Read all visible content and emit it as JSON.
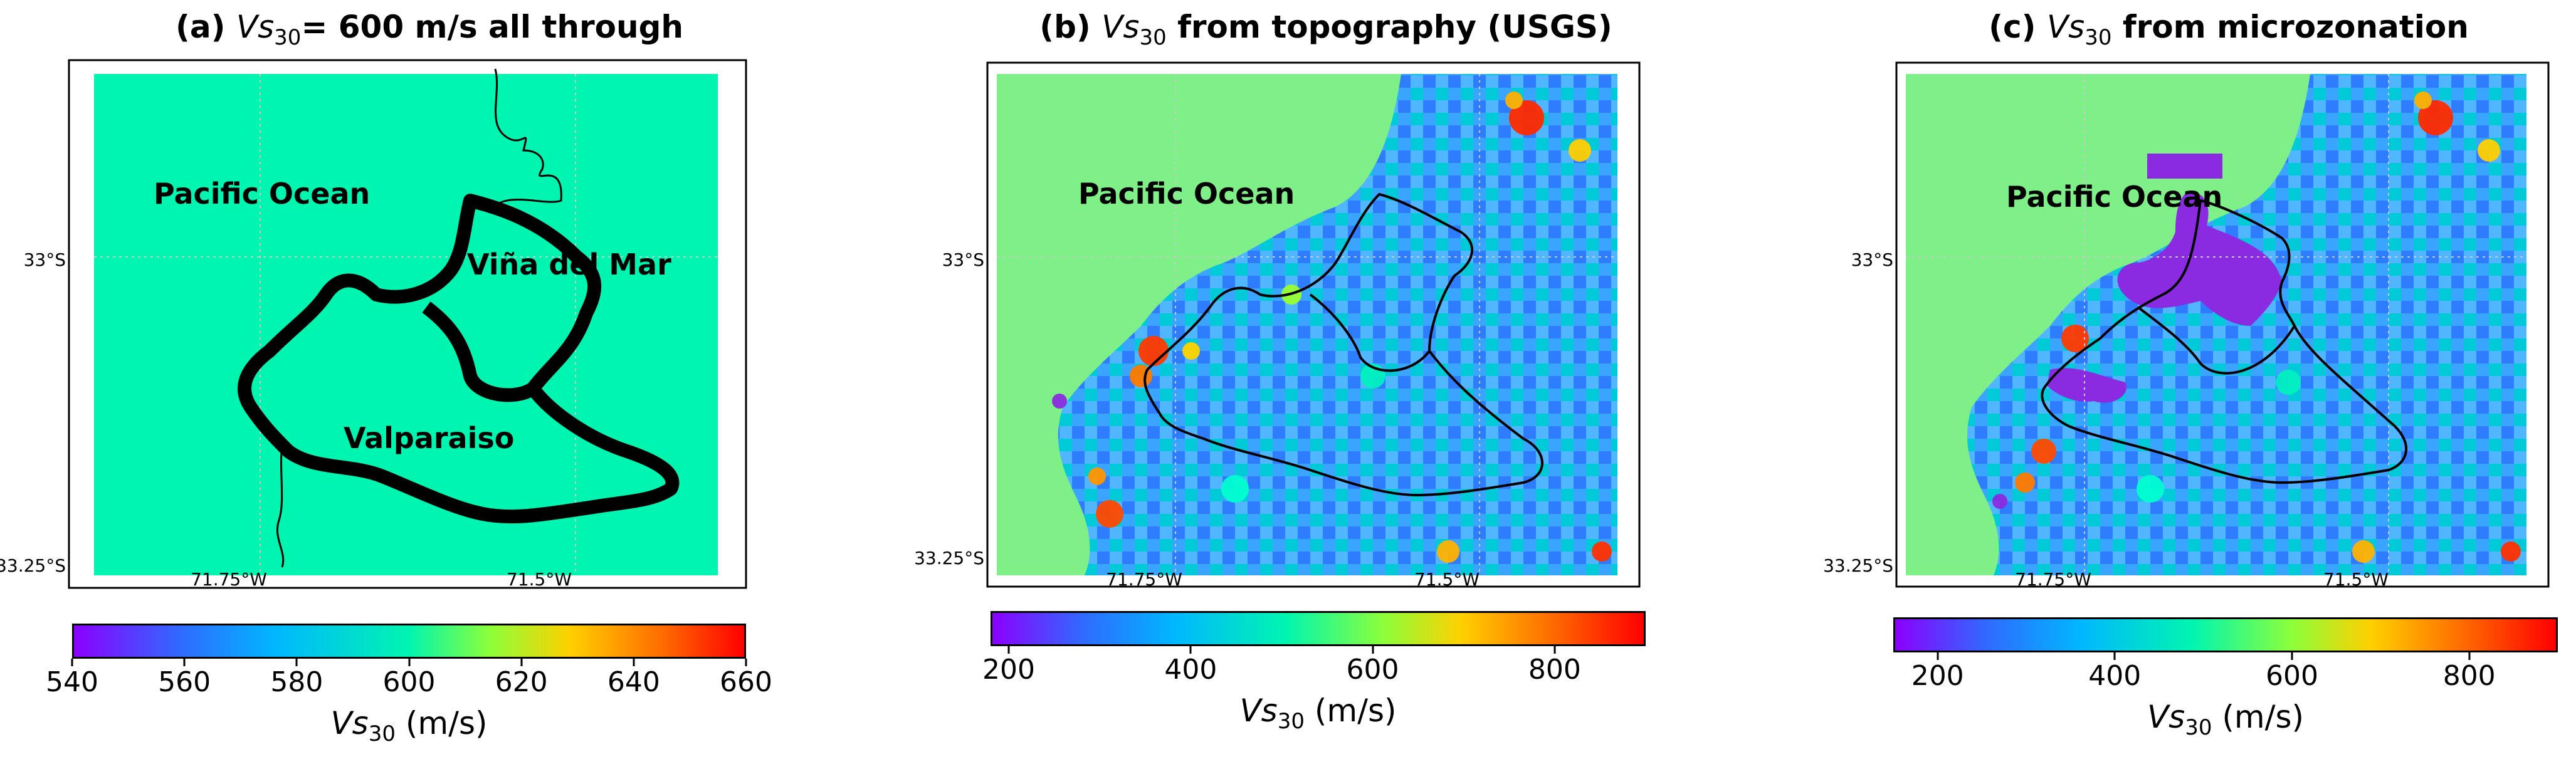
{
  "figure": {
    "panels": [
      {
        "title_prefix": "(a)",
        "title_var": "Vs",
        "title_sub": "30",
        "title_rest": "= 600 m/s all through",
        "labels": {
          "ocean": "Pacific Ocean",
          "city1": "Viña del Mar",
          "city2": "Valparaiso"
        },
        "lat_ticks": [
          "33°S",
          "33.25°S"
        ],
        "lon_ticks": [
          "71.75°W",
          "71.5°W"
        ],
        "colorbar": {
          "ticks": [
            "540",
            "560",
            "580",
            "600",
            "620",
            "640",
            "660"
          ],
          "label_var": "Vs",
          "label_sub": "30",
          "label_unit": "(m/s)"
        }
      },
      {
        "title_prefix": "(b)",
        "title_var": "Vs",
        "title_sub": "30",
        "title_rest": "from topography (USGS)",
        "labels": {
          "ocean": "Pacific Ocean"
        },
        "lat_ticks": [
          "33°S",
          "33.25°S"
        ],
        "lon_ticks": [
          "71.75°W",
          "71.5°W"
        ],
        "colorbar": {
          "ticks": [
            "200",
            "400",
            "600",
            "800"
          ],
          "label_var": "Vs",
          "label_sub": "30",
          "label_unit": "(m/s)"
        }
      },
      {
        "title_prefix": "(c)",
        "title_var": "Vs",
        "title_sub": "30",
        "title_rest": "from microzonation",
        "labels": {
          "ocean": "Pacific Ocean"
        },
        "lat_ticks": [
          "33°S",
          "33.25°S"
        ],
        "lon_ticks": [
          "71.75°W",
          "71.5°W"
        ],
        "colorbar": {
          "ticks": [
            "200",
            "400",
            "600",
            "800"
          ],
          "label_var": "Vs",
          "label_sub": "30",
          "label_unit": "(m/s)"
        }
      }
    ]
  },
  "chart_data": [
    {
      "type": "heatmap",
      "title": "(a) Vs30= 600 m/s all through",
      "colorbar_range": [
        540,
        660
      ],
      "colorbar_label": "Vs30 (m/s)",
      "uniform_value": 600,
      "colormap": "rainbow"
    },
    {
      "type": "heatmap",
      "title": "(b) Vs30 from topography (USGS)",
      "colorbar_range": [
        180,
        900
      ],
      "colorbar_label": "Vs30 (m/s)",
      "colormap": "rainbow"
    },
    {
      "type": "heatmap",
      "title": "(c) Vs30 from microzonation",
      "colorbar_range": [
        150,
        900
      ],
      "colorbar_label": "Vs30 (m/s)",
      "colormap": "rainbow"
    }
  ],
  "colors": {
    "panel_a_fill": "#00f5b0",
    "ocean_b_c": "#7fef88",
    "purple_zone": "#8a2be2"
  }
}
